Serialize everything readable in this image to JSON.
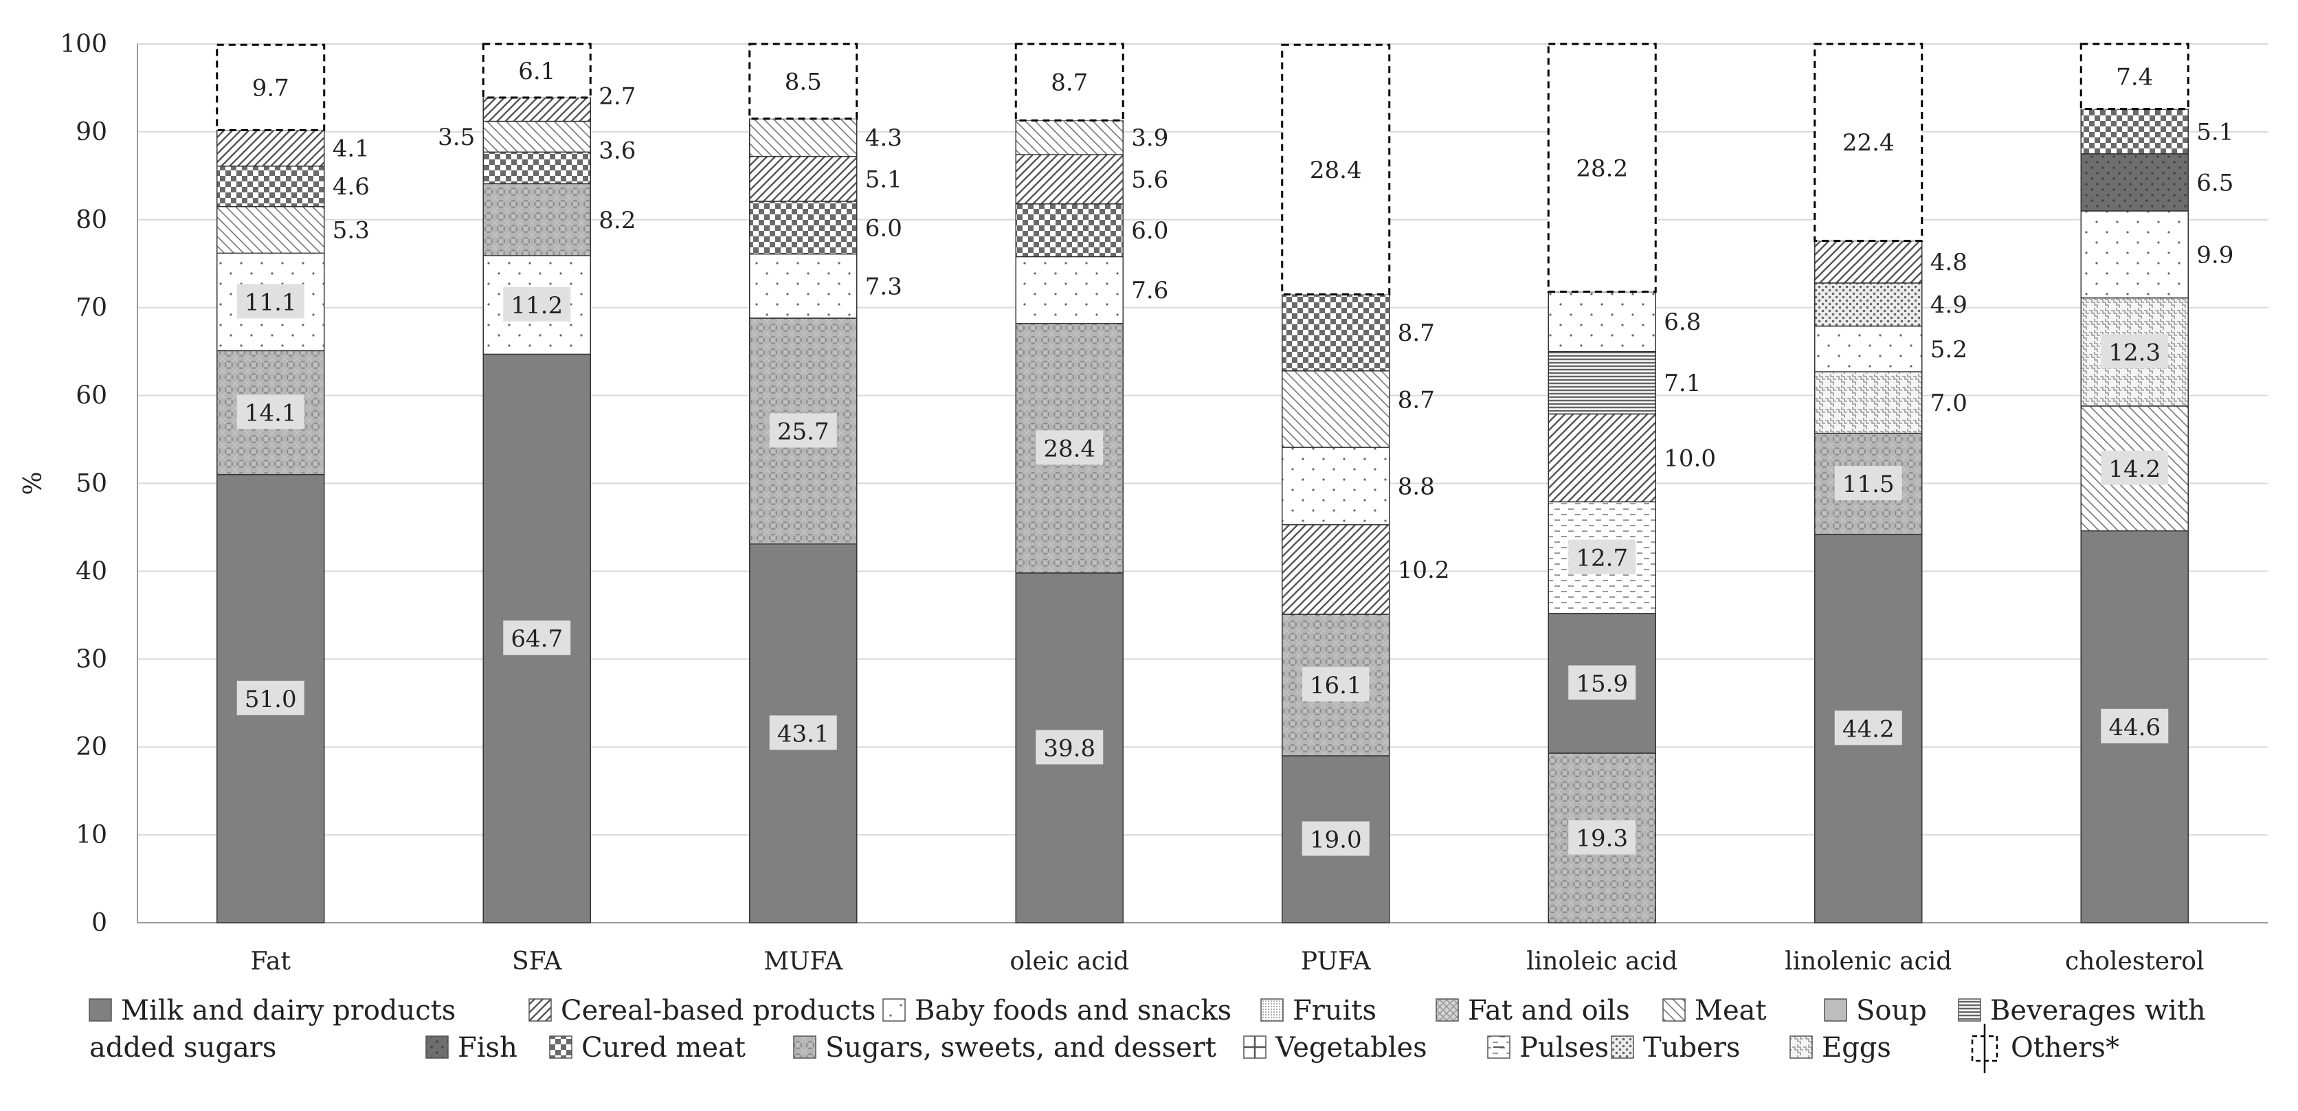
{
  "chart_data": {
    "type": "bar",
    "stacked": true,
    "ylabel": "%",
    "ylim": [
      0,
      100
    ],
    "yticks": [
      "0",
      "10",
      "20",
      "30",
      "40",
      "50",
      "60",
      "70",
      "80",
      "90",
      "100"
    ],
    "categories": [
      "Fat",
      "SFA",
      "MUFA",
      "oleic acid",
      "PUFA",
      "linoleic acid",
      "linolenic acid",
      "cholesterol"
    ],
    "legend_placement": "bottom",
    "legend": [
      {
        "name": "Milk and dairy products",
        "pattern": "milk"
      },
      {
        "name": "Cereal-based products",
        "pattern": "cereal"
      },
      {
        "name": "Baby foods and snacks",
        "pattern": "baby"
      },
      {
        "name": "Fruits",
        "pattern": "fruits"
      },
      {
        "name": "Fat and oils",
        "pattern": "fat"
      },
      {
        "name": "Meat",
        "pattern": "meat"
      },
      {
        "name": "Soup",
        "pattern": "soup"
      },
      {
        "name": "Beverages with added sugars",
        "pattern": "bev",
        "line1": "Beverages with",
        "line2": "added sugars"
      },
      {
        "name": "Fish",
        "pattern": "fish"
      },
      {
        "name": "Cured meat",
        "pattern": "cured"
      },
      {
        "name": "Sugars, sweets, and dessert",
        "pattern": "sugars"
      },
      {
        "name": "Vegetables",
        "pattern": "veg"
      },
      {
        "name": "Pulses",
        "pattern": "pulses"
      },
      {
        "name": "Tubers",
        "pattern": "tubers"
      },
      {
        "name": "Eggs",
        "pattern": "eggs"
      },
      {
        "name": "Others*",
        "pattern": "others"
      }
    ],
    "bars": [
      {
        "category": "Fat",
        "segments": [
          {
            "series": "Milk and dairy products",
            "value": 51.0,
            "label": "51.0"
          },
          {
            "series": "Sugars, sweets, and dessert",
            "value": 14.1,
            "label": "14.1"
          },
          {
            "series": "Baby foods and snacks",
            "value": 11.1,
            "label": "11.1"
          },
          {
            "series": "Meat",
            "value": 5.3,
            "label": "5.3"
          },
          {
            "series": "Cured meat",
            "value": 4.6,
            "label": "4.6"
          },
          {
            "series": "Cereal-based products",
            "value": 4.1,
            "label": "4.1"
          },
          {
            "series": "Others*",
            "value": 9.7,
            "label": "9.7"
          }
        ]
      },
      {
        "category": "SFA",
        "segments": [
          {
            "series": "Milk and dairy products",
            "value": 64.7,
            "label": "64.7"
          },
          {
            "series": "Baby foods and snacks",
            "value": 11.2,
            "label": "11.2"
          },
          {
            "series": "Sugars, sweets, and dessert",
            "value": 8.2,
            "label": "8.2"
          },
          {
            "series": "Cured meat",
            "value": 3.6,
            "label": "3.6"
          },
          {
            "series": "Meat",
            "value": 3.5,
            "label": "3.5"
          },
          {
            "series": "Cereal-based products",
            "value": 2.7,
            "label": "2.7"
          },
          {
            "series": "Others*",
            "value": 6.1,
            "label": "6.1"
          }
        ]
      },
      {
        "category": "MUFA",
        "segments": [
          {
            "series": "Milk and dairy products",
            "value": 43.1,
            "label": "43.1"
          },
          {
            "series": "Sugars, sweets, and dessert",
            "value": 25.7,
            "label": "25.7"
          },
          {
            "series": "Baby foods and snacks",
            "value": 7.3,
            "label": "7.3"
          },
          {
            "series": "Cured meat",
            "value": 6.0,
            "label": "6.0"
          },
          {
            "series": "Cereal-based products",
            "value": 5.1,
            "label": "5.1"
          },
          {
            "series": "Meat",
            "value": 4.3,
            "label": "4.3"
          },
          {
            "series": "Others*",
            "value": 8.5,
            "label": "8.5"
          }
        ]
      },
      {
        "category": "oleic acid",
        "segments": [
          {
            "series": "Milk and dairy products",
            "value": 39.8,
            "label": "39.8"
          },
          {
            "series": "Sugars, sweets, and dessert",
            "value": 28.4,
            "label": "28.4"
          },
          {
            "series": "Baby foods and snacks",
            "value": 7.6,
            "label": "7.6"
          },
          {
            "series": "Cured meat",
            "value": 6.0,
            "label": "6.0"
          },
          {
            "series": "Cereal-based products",
            "value": 5.6,
            "label": "5.6"
          },
          {
            "series": "Meat",
            "value": 3.9,
            "label": "3.9"
          },
          {
            "series": "Others*",
            "value": 8.7,
            "label": "8.7"
          }
        ]
      },
      {
        "category": "PUFA",
        "segments": [
          {
            "series": "Milk and dairy products",
            "value": 19.0,
            "label": "19.0"
          },
          {
            "series": "Sugars, sweets, and dessert",
            "value": 16.1,
            "label": "16.1"
          },
          {
            "series": "Cereal-based products",
            "value": 10.2,
            "label": "10.2"
          },
          {
            "series": "Baby foods and snacks",
            "value": 8.8,
            "label": "8.8"
          },
          {
            "series": "Meat",
            "value": 8.7,
            "label": "8.7"
          },
          {
            "series": "Cured meat",
            "value": 8.7,
            "label": "8.7"
          },
          {
            "series": "Others*",
            "value": 28.4,
            "label": "28.4"
          }
        ]
      },
      {
        "category": "linoleic acid",
        "segments": [
          {
            "series": "Sugars, sweets, and dessert",
            "value": 19.3,
            "label": "19.3"
          },
          {
            "series": "Milk and dairy products",
            "value": 15.9,
            "label": "15.9"
          },
          {
            "series": "Pulses",
            "value": 12.7,
            "label": "12.7"
          },
          {
            "series": "Cereal-based products",
            "value": 10.0,
            "label": "10.0"
          },
          {
            "series": "Beverages with added sugars",
            "value": 7.1,
            "label": "7.1"
          },
          {
            "series": "Baby foods and snacks",
            "value": 6.8,
            "label": "6.8"
          },
          {
            "series": "Others*",
            "value": 28.2,
            "label": "28.2"
          }
        ]
      },
      {
        "category": "linolenic acid",
        "segments": [
          {
            "series": "Milk and dairy products",
            "value": 44.2,
            "label": "44.2"
          },
          {
            "series": "Sugars, sweets, and dessert",
            "value": 11.5,
            "label": "11.5"
          },
          {
            "series": "Eggs",
            "value": 7.0,
            "label": "7.0"
          },
          {
            "series": "Baby foods and snacks",
            "value": 5.2,
            "label": "5.2"
          },
          {
            "series": "Tubers",
            "value": 4.9,
            "label": "4.9"
          },
          {
            "series": "Cereal-based products",
            "value": 4.8,
            "label": "4.8"
          },
          {
            "series": "Others*",
            "value": 22.4,
            "label": "22.4"
          }
        ]
      },
      {
        "category": "cholesterol",
        "segments": [
          {
            "series": "Milk and dairy products",
            "value": 44.6,
            "label": "44.6"
          },
          {
            "series": "Meat",
            "value": 14.2,
            "label": "14.2"
          },
          {
            "series": "Eggs",
            "value": 12.3,
            "label": "12.3"
          },
          {
            "series": "Baby foods and snacks",
            "value": 9.9,
            "label": "9.9"
          },
          {
            "series": "Fish",
            "value": 6.5,
            "label": "6.5"
          },
          {
            "series": "Cured meat",
            "value": 5.1,
            "label": "5.1"
          },
          {
            "series": "Others*",
            "value": 7.4,
            "label": "7.4"
          }
        ]
      }
    ]
  }
}
